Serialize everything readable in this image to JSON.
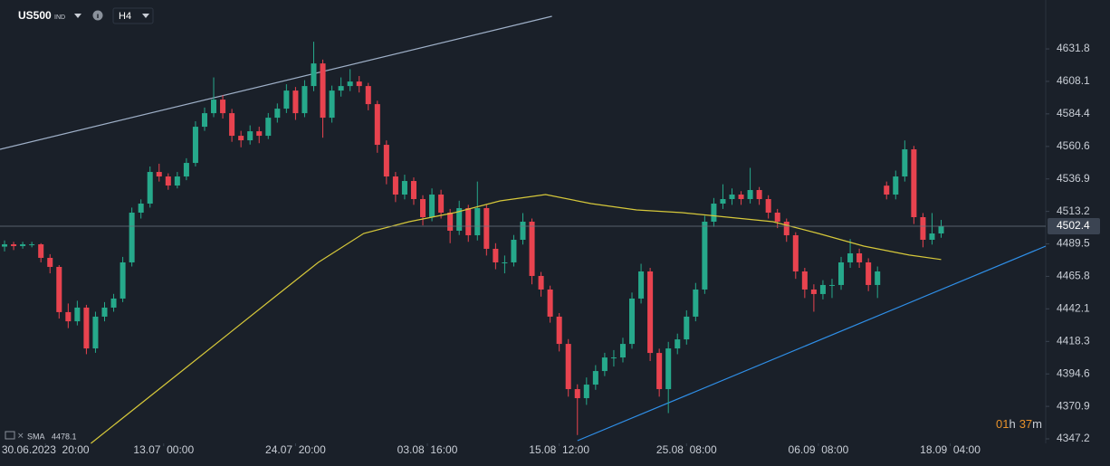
{
  "chart_data": {
    "type": "candlestick",
    "symbol": "US500",
    "symbol_type": "IND",
    "timeframe": "H4",
    "up_color": "#26a98b",
    "down_color": "#e8434f",
    "background": "#1a2029",
    "xlim": [
      -0.5,
      114.5
    ],
    "ylim": [
      4343.9,
      4667.5
    ],
    "yticks": [
      4631.8,
      4608.1,
      4584.4,
      4560.6,
      4536.9,
      4513.2,
      4489.5,
      4465.8,
      4442.1,
      4418.3,
      4394.6,
      4370.9,
      4347.2
    ],
    "xticks": [
      {
        "value": 4.5,
        "label": "30.06.2023  20:00"
      },
      {
        "value": 17.5,
        "label": "13.07  00:00"
      },
      {
        "value": 32,
        "label": "24.07  20:00"
      },
      {
        "value": 46.5,
        "label": "03.08  16:00"
      },
      {
        "value": 61,
        "label": "15.08  12:00"
      },
      {
        "value": 75,
        "label": "25.08  08:00"
      },
      {
        "value": 89.5,
        "label": "06.09  08:00"
      },
      {
        "value": 104,
        "label": "18.09  04:00"
      }
    ],
    "ohlc": [
      [
        4487.5,
        4492,
        4484,
        4489.2
      ],
      [
        4489.2,
        4491,
        4485,
        4487.9
      ],
      [
        4487.9,
        4491,
        4486,
        4489.2
      ],
      [
        4489.2,
        4491,
        4487,
        4489.2
      ],
      [
        4489.2,
        4490,
        4476,
        4479.3
      ],
      [
        4479.3,
        4482,
        4468,
        4472.7
      ],
      [
        4472.7,
        4474,
        4435,
        4439.7
      ],
      [
        4439.7,
        4446,
        4428,
        4433.0
      ],
      [
        4433.0,
        4448,
        4430,
        4443.0
      ],
      [
        4443.0,
        4445,
        4409,
        4413.2
      ],
      [
        4413.2,
        4440,
        4410,
        4436.4
      ],
      [
        4436.4,
        4447,
        4433,
        4443.0
      ],
      [
        4443.0,
        4453,
        4440,
        4449.6
      ],
      [
        4449.6,
        4480,
        4447,
        4476.0
      ],
      [
        4476.0,
        4516,
        4473,
        4512.3
      ],
      [
        4512.3,
        4522,
        4508,
        4518.9
      ],
      [
        4518.9,
        4546,
        4516,
        4542.0
      ],
      [
        4542.0,
        4548,
        4535,
        4538.7
      ],
      [
        4538.7,
        4541,
        4529,
        4532.1
      ],
      [
        4532.1,
        4542,
        4530,
        4538.7
      ],
      [
        4538.7,
        4552,
        4536,
        4548.6
      ],
      [
        4548.6,
        4579,
        4546,
        4575.0
      ],
      [
        4575.0,
        4589,
        4572,
        4584.9
      ],
      [
        4584.9,
        4611,
        4582,
        4594.8
      ],
      [
        4594.8,
        4598,
        4581,
        4584.9
      ],
      [
        4584.9,
        4588,
        4564,
        4568.4
      ],
      [
        4568.4,
        4572,
        4560,
        4565.1
      ],
      [
        4565.1,
        4576,
        4562,
        4571.7
      ],
      [
        4571.7,
        4575,
        4563,
        4568.4
      ],
      [
        4568.4,
        4585,
        4566,
        4581.6
      ],
      [
        4581.6,
        4592,
        4578,
        4588.2
      ],
      [
        4588.2,
        4606,
        4585,
        4601.4
      ],
      [
        4601.4,
        4604,
        4580,
        4584.9
      ],
      [
        4584.9,
        4609,
        4582,
        4604.7
      ],
      [
        4604.7,
        4637,
        4601,
        4621.2
      ],
      [
        4621.2,
        4624,
        4567,
        4581.6
      ],
      [
        4581.6,
        4605,
        4578,
        4601.4
      ],
      [
        4601.4,
        4611,
        4597,
        4604.7
      ],
      [
        4604.7,
        4617,
        4601,
        4608.0
      ],
      [
        4608.0,
        4612,
        4600,
        4604.7
      ],
      [
        4604.7,
        4607,
        4587,
        4591.5
      ],
      [
        4591.5,
        4594,
        4556,
        4561.8
      ],
      [
        4561.8,
        4565,
        4533,
        4538.7
      ],
      [
        4538.7,
        4542,
        4520,
        4525.5
      ],
      [
        4525.5,
        4540,
        4522,
        4535.4
      ],
      [
        4535.4,
        4538,
        4518,
        4522.2
      ],
      [
        4522.2,
        4525,
        4503,
        4509.0
      ],
      [
        4509.0,
        4530,
        4506,
        4525.5
      ],
      [
        4525.5,
        4529,
        4508,
        4512.3
      ],
      [
        4512.3,
        4515,
        4490,
        4499.1
      ],
      [
        4499.1,
        4521,
        4496,
        4515.6
      ],
      [
        4515.6,
        4518,
        4491,
        4495.8
      ],
      [
        4495.8,
        4535,
        4492,
        4515.6
      ],
      [
        4515.6,
        4518,
        4481,
        4485.9
      ],
      [
        4485.9,
        4490,
        4471,
        4476.0
      ],
      [
        4476.0,
        4481,
        4468,
        4476.0
      ],
      [
        4476.0,
        4496,
        4473,
        4492.5
      ],
      [
        4492.5,
        4512,
        4489,
        4505.7
      ],
      [
        4505.7,
        4508,
        4460,
        4466.1
      ],
      [
        4466.1,
        4469,
        4451,
        4456.2
      ],
      [
        4456.2,
        4459,
        4432,
        4436.4
      ],
      [
        4436.4,
        4439,
        4411,
        4416.5
      ],
      [
        4416.5,
        4420,
        4378,
        4383.5
      ],
      [
        4383.5,
        4387,
        4350,
        4376.9
      ],
      [
        4376.9,
        4392,
        4372,
        4386.8
      ],
      [
        4386.8,
        4401,
        4383,
        4396.7
      ],
      [
        4396.7,
        4410,
        4393,
        4406.6
      ],
      [
        4406.6,
        4412,
        4400,
        4406.6
      ],
      [
        4406.6,
        4421,
        4403,
        4416.5
      ],
      [
        4416.5,
        4454,
        4413,
        4449.6
      ],
      [
        4449.6,
        4475,
        4446,
        4469.4
      ],
      [
        4469.4,
        4472,
        4404,
        4409.9
      ],
      [
        4409.9,
        4413,
        4378,
        4383.5
      ],
      [
        4383.5,
        4418,
        4366,
        4413.2
      ],
      [
        4413.2,
        4424,
        4409,
        4419.8
      ],
      [
        4419.8,
        4441,
        4416,
        4436.4
      ],
      [
        4436.4,
        4461,
        4433,
        4456.2
      ],
      [
        4456.2,
        4510,
        4453,
        4505.7
      ],
      [
        4505.7,
        4523,
        4502,
        4518.9
      ],
      [
        4518.9,
        4533,
        4515,
        4522.2
      ],
      [
        4522.2,
        4530,
        4518,
        4525.5
      ],
      [
        4525.5,
        4528,
        4518,
        4522.2
      ],
      [
        4522.2,
        4545,
        4519,
        4528.8
      ],
      [
        4528.8,
        4531,
        4518,
        4522.2
      ],
      [
        4522.2,
        4525,
        4508,
        4512.3
      ],
      [
        4512.3,
        4515,
        4501,
        4505.7
      ],
      [
        4505.7,
        4508,
        4491,
        4495.8
      ],
      [
        4495.8,
        4498,
        4464,
        4469.4
      ],
      [
        4469.4,
        4472,
        4450,
        4456.2
      ],
      [
        4456.2,
        4460,
        4440,
        4452.9
      ],
      [
        4452.9,
        4463,
        4449,
        4459.5
      ],
      [
        4459.5,
        4464,
        4450,
        4459.5
      ],
      [
        4459.5,
        4480,
        4456,
        4476.0
      ],
      [
        4476.0,
        4493,
        4472,
        4482.6
      ],
      [
        4482.6,
        4486,
        4472,
        4476.0
      ],
      [
        4476.0,
        4479,
        4455,
        4459.5
      ],
      [
        4459.5,
        4473,
        4450,
        4469.4
      ],
      [
        4532.0,
        4535,
        4522,
        4525.5
      ],
      [
        4525.5,
        4543,
        4522,
        4538.7
      ],
      [
        4538.7,
        4565,
        4535,
        4558.5
      ],
      [
        4558.5,
        4561,
        4504,
        4509.0
      ],
      [
        4509.0,
        4512,
        4487,
        4492.5
      ],
      [
        4492.5,
        4512,
        4489,
        4497.1
      ],
      [
        4497.1,
        4507,
        4494,
        4502.4
      ]
    ],
    "sma": {
      "name": "SMA",
      "color": "#d6c83a",
      "x": [
        9.5,
        19.5,
        29.5,
        34.5,
        39.5,
        44.5,
        49.5,
        54.5,
        59.5,
        64.5,
        69.5,
        74.5,
        79.5,
        84.5,
        89.5,
        94.5,
        99.5,
        103
      ],
      "values": [
        4343.9,
        4396.7,
        4449.6,
        4476.0,
        4497.1,
        4505.7,
        4512.3,
        4520.9,
        4525.5,
        4518.9,
        4514.3,
        4512.3,
        4509.0,
        4505.7,
        4497.1,
        4487.9,
        4481.3,
        4478.1
      ]
    },
    "trendlines": [
      {
        "color": "#9fb0c8",
        "x": [
          -0.5,
          60.2
        ],
        "values": [
          4558.5,
          4655.6
        ]
      },
      {
        "color": "#2f8fe8",
        "x": [
          63.0,
          114.5
        ],
        "values": [
          4345.9,
          4487.9
        ]
      }
    ],
    "countdown": {
      "hours": "01",
      "h": "h",
      "minutes": "37",
      "m": "m"
    }
  }
}
